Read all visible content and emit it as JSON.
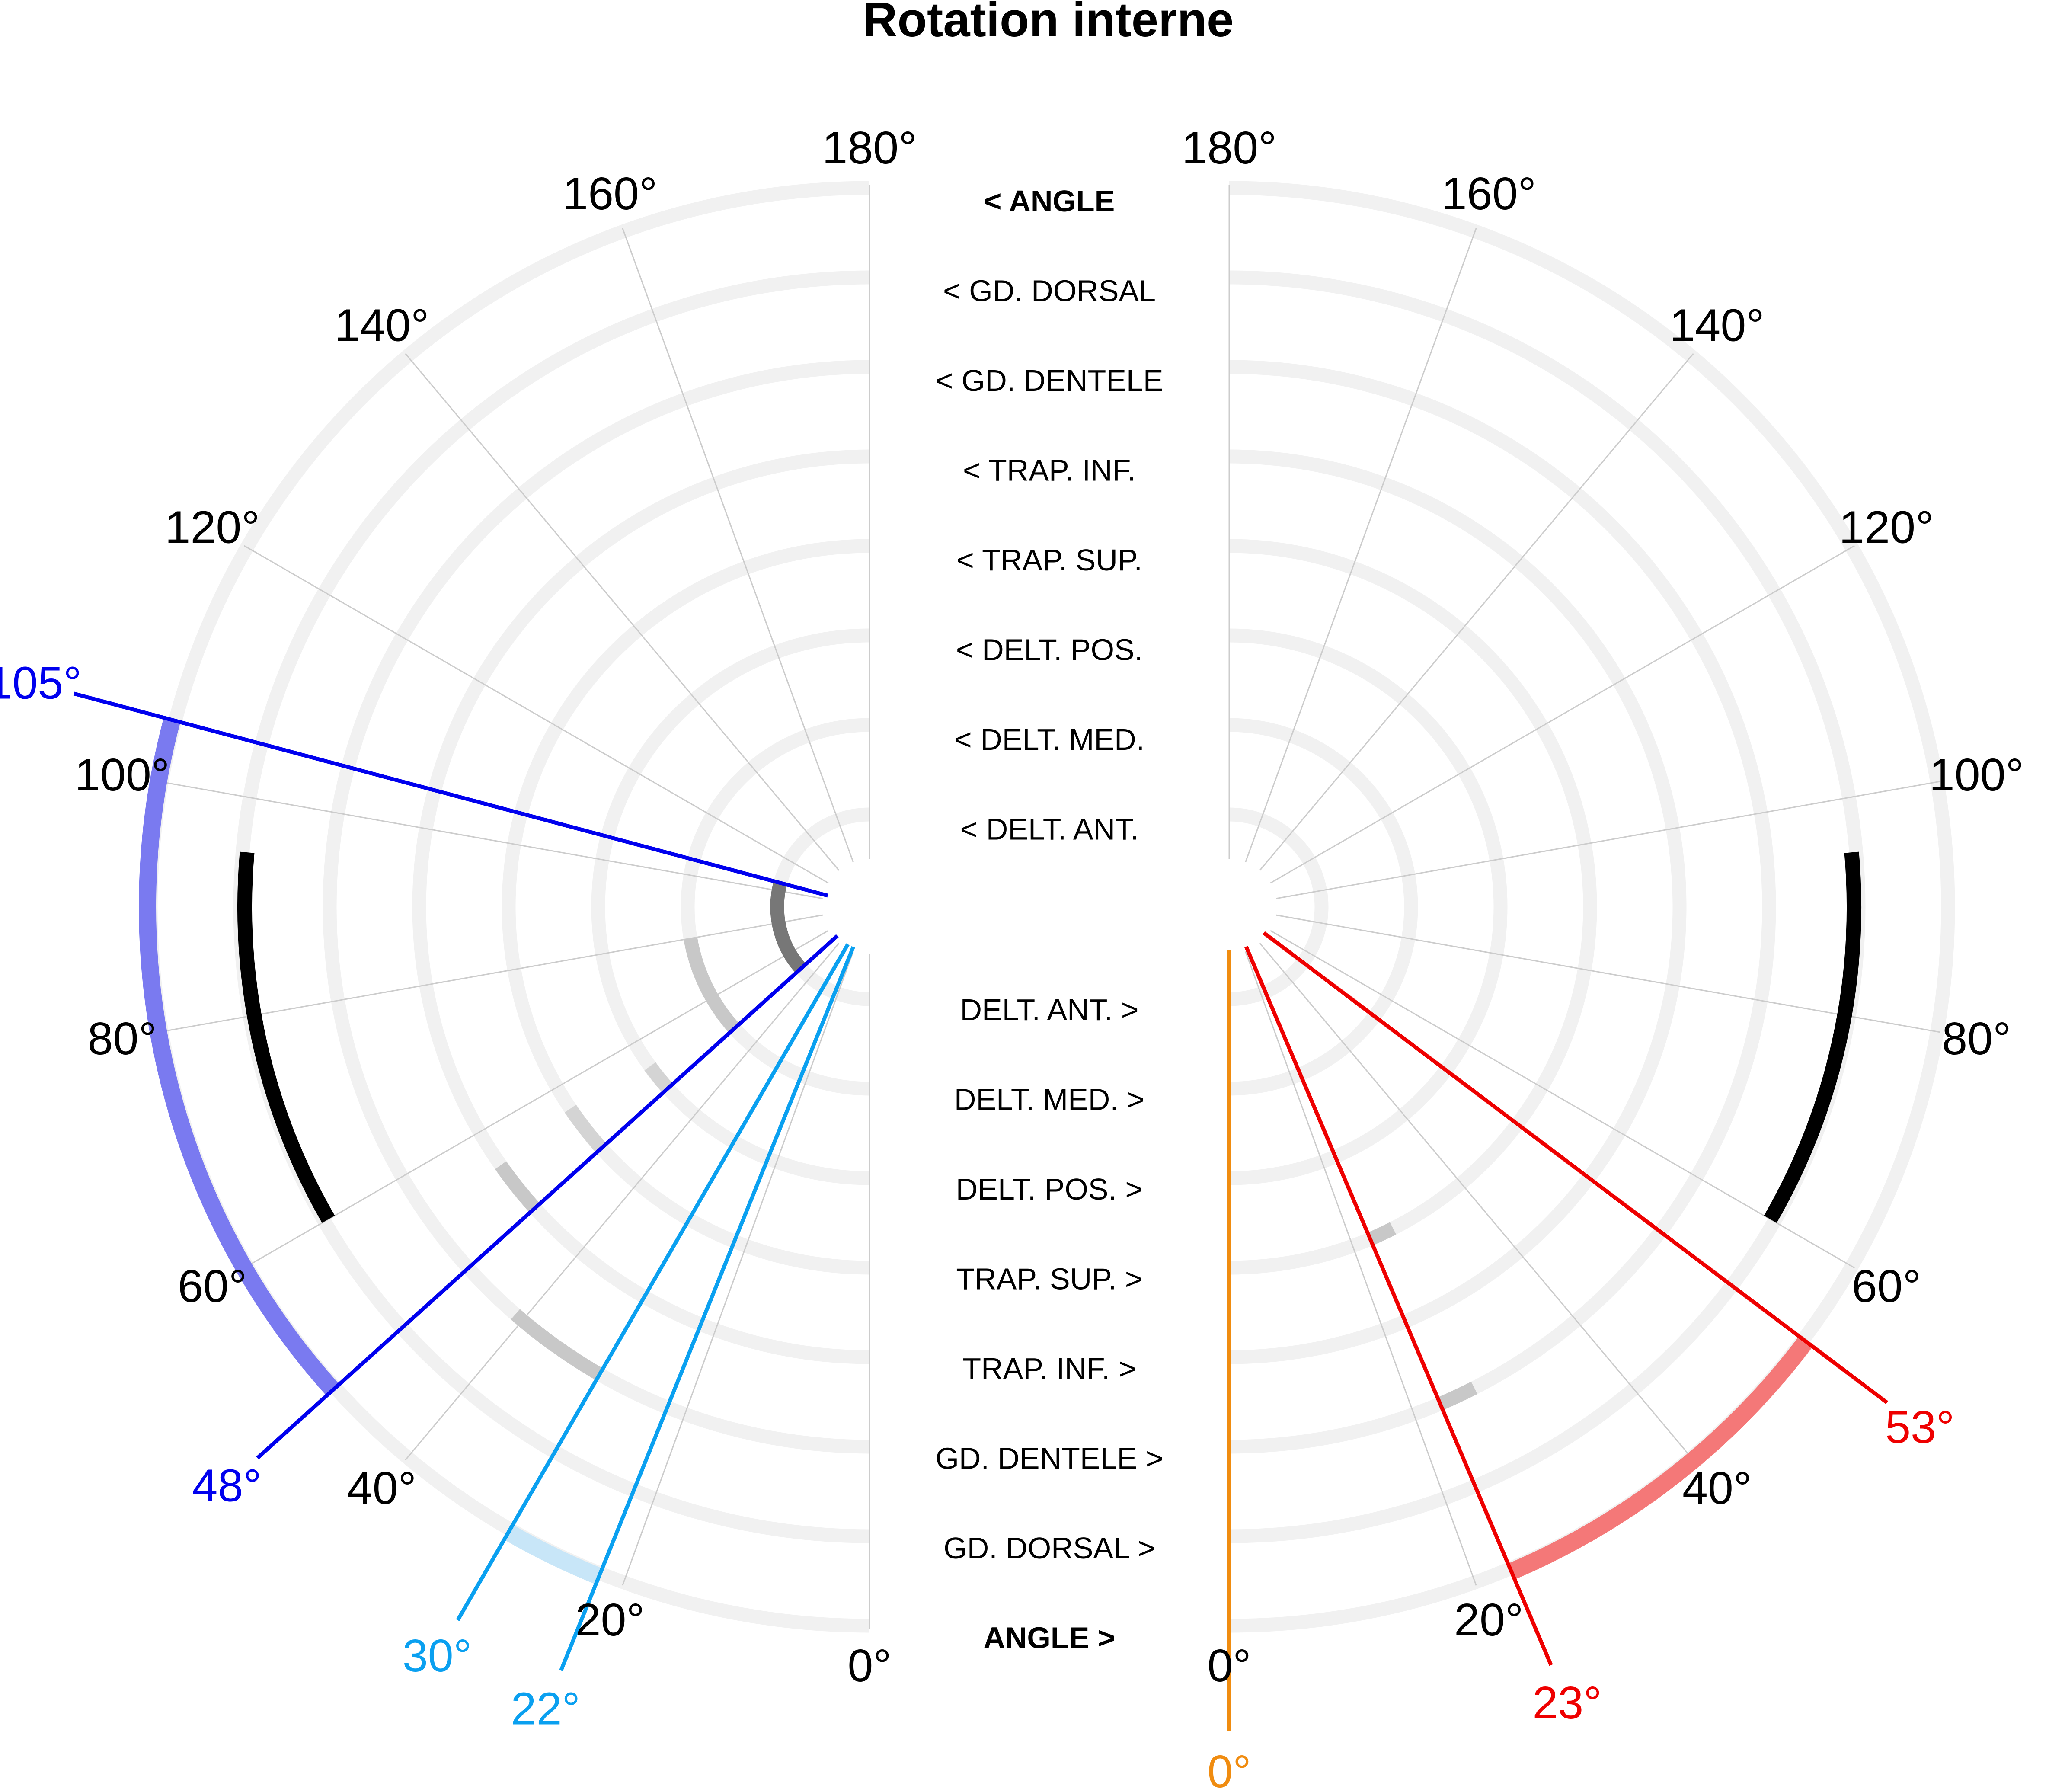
{
  "chart_data": {
    "type": "polar-arc",
    "title": "Rotation interne",
    "angle_ticks": [
      "0°",
      "20°",
      "40°",
      "60°",
      "80°",
      "100°",
      "120°",
      "140°",
      "160°",
      "180°"
    ],
    "angle_tick_values": [
      0,
      20,
      40,
      60,
      80,
      100,
      120,
      140,
      160,
      180
    ],
    "ring_labels_left": [
      "< ANGLE",
      "< GD. DORSAL",
      "< GD. DENTELE",
      "< TRAP. INF.",
      "< TRAP. SUP.",
      "< DELT. POS.",
      "< DELT. MED.",
      "< DELT. ANT."
    ],
    "ring_labels_right": [
      "DELT. ANT. >",
      "DELT. MED. >",
      "DELT. POS. >",
      "TRAP. SUP. >",
      "TRAP. INF. >",
      "GD. DENTELE >",
      "GD. DORSAL >",
      "ANGLE >"
    ],
    "reference_range": {
      "from": 60,
      "to": 95,
      "color": "#000000"
    },
    "left": {
      "markers": [
        {
          "value": 105,
          "label": "105°",
          "color": "#0000ee"
        },
        {
          "value": 48,
          "label": "48°",
          "color": "#0000ee"
        },
        {
          "value": 30,
          "label": "30°",
          "color": "#0aa0f0"
        },
        {
          "value": 22,
          "label": "22°",
          "color": "#0aa0f0"
        }
      ],
      "angle_arcs": [
        {
          "from": 48,
          "to": 105,
          "color": "#7a7af0"
        },
        {
          "from": 22,
          "to": 30,
          "color": "#c8e6f8"
        }
      ],
      "muscle_arcs": [
        {
          "muscle": "DELT. ANT.",
          "from": 48,
          "to": 105,
          "color": "#777777"
        },
        {
          "muscle": "DELT. MED.",
          "from": 48,
          "to": 80,
          "color": "#c8c8c8"
        },
        {
          "muscle": "DELT. POS.",
          "from": 48,
          "to": 54,
          "color": "#d4d4d4"
        },
        {
          "muscle": "TRAP. SUP.",
          "from": 48,
          "to": 56,
          "color": "#d4d4d4"
        },
        {
          "muscle": "TRAP. INF.",
          "from": 48,
          "to": 55,
          "color": "#c8c8c8"
        },
        {
          "muscle": "GD. DENTELE",
          "from": 30,
          "to": 41,
          "color": "#c8c8c8"
        }
      ]
    },
    "right": {
      "markers": [
        {
          "value": 0,
          "label": "0°",
          "color": "#f08c10"
        },
        {
          "value": 23,
          "label": "23°",
          "color": "#ee0000"
        },
        {
          "value": 53,
          "label": "53°",
          "color": "#ee0000"
        }
      ],
      "angle_arcs": [
        {
          "from": 23,
          "to": 53,
          "color": "#f47878"
        }
      ],
      "muscle_arcs": [
        {
          "muscle": "TRAP. SUP.",
          "from": 23,
          "to": 27,
          "color": "#c8c8c8"
        },
        {
          "muscle": "GD. DENTELE",
          "from": 23,
          "to": 27,
          "color": "#c8c8c8"
        }
      ]
    }
  }
}
